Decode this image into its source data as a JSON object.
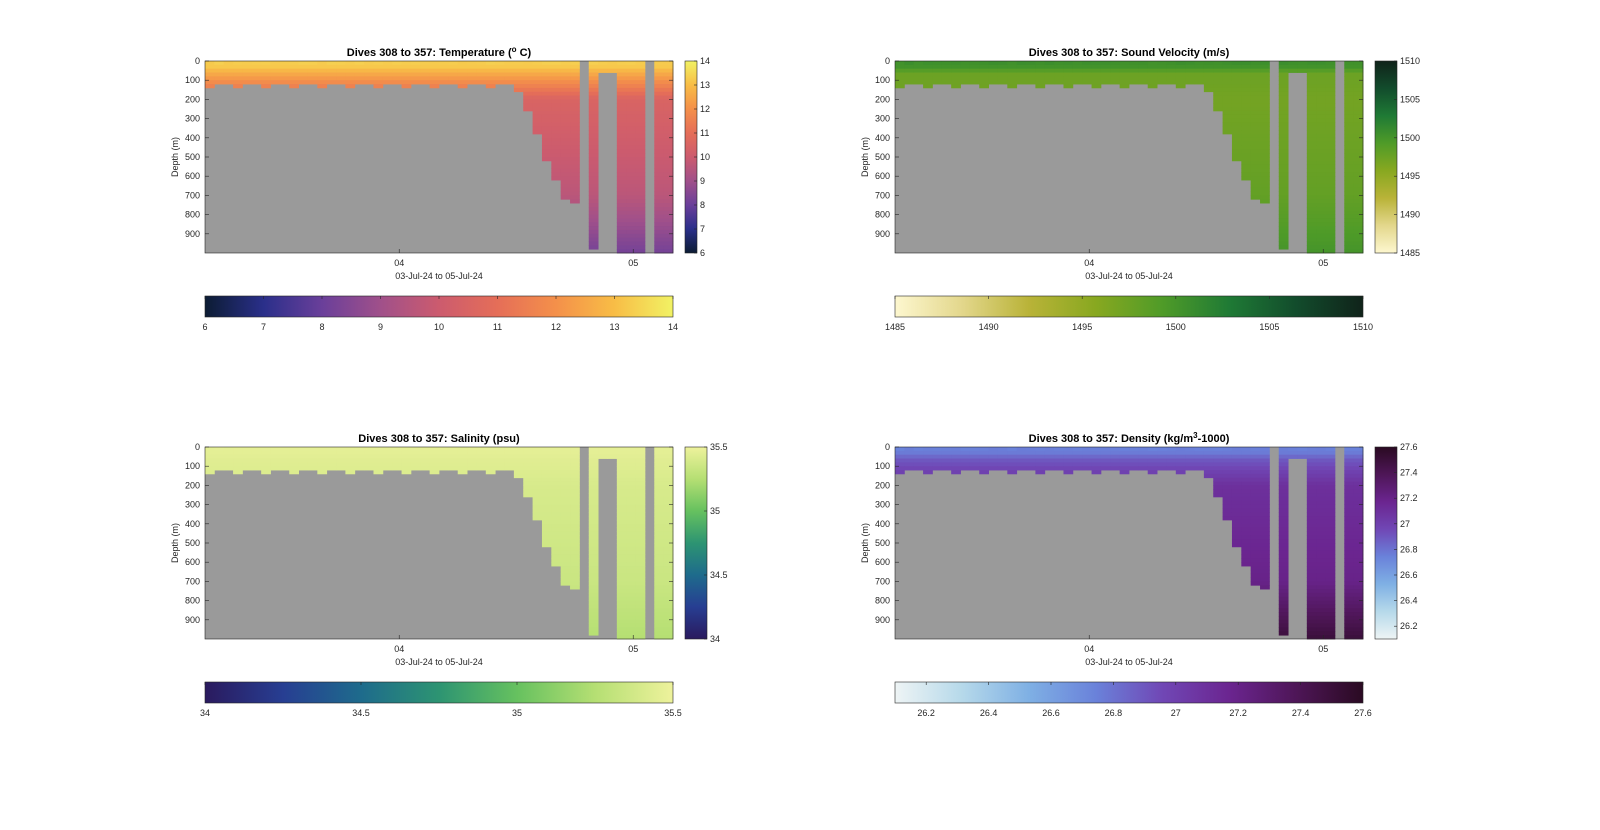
{
  "figure": {
    "xlabel": "03-Jul-24 to 05-Jul-24",
    "ylabel": "Depth (m)",
    "nodata_color": "#9a9a9a",
    "x_ticks": [
      "04",
      "05"
    ],
    "y_ticks": [
      "0",
      "100",
      "200",
      "300",
      "400",
      "500",
      "600",
      "700",
      "800",
      "900"
    ]
  },
  "chart_data": [
    {
      "type": "heatmap",
      "title_prefix": "Dives 308 to 357: Temperature (",
      "title_sup": "o",
      "title_suffix": " C)",
      "variable": "Temperature",
      "x_range": [
        "03-Jul-24",
        "05-Jul-24"
      ],
      "ylim": [
        0,
        1000
      ],
      "y_reversed": true,
      "clim": [
        6,
        14
      ],
      "colorbar_ticks": [
        "6",
        "7",
        "8",
        "9",
        "10",
        "11",
        "12",
        "13",
        "14"
      ],
      "colormap": [
        "#0c1c33",
        "#2a2f8a",
        "#6a3f9a",
        "#a0508a",
        "#cc5b6e",
        "#e56e58",
        "#f4904a",
        "#f8bd46",
        "#f1f264"
      ],
      "profile": {
        "surface": 13.3,
        "mixed": 12.5,
        "thermocline": 10.5,
        "deep": 9.6,
        "bottom": 8.2
      }
    },
    {
      "type": "heatmap",
      "title_prefix": "Dives 308 to 357: Sound Velocity (m/s)",
      "title_sup": "",
      "title_suffix": "",
      "variable": "Sound Velocity",
      "x_range": [
        "03-Jul-24",
        "05-Jul-24"
      ],
      "ylim": [
        0,
        1000
      ],
      "y_reversed": true,
      "clim": [
        1485,
        1510
      ],
      "colorbar_ticks": [
        "1485",
        "1490",
        "1495",
        "1500",
        "1505",
        "1510"
      ],
      "colormap": [
        "#fdf7cf",
        "#e3d78c",
        "#b9b338",
        "#88a820",
        "#4f9b28",
        "#1f7a35",
        "#124c2c",
        "#10231a"
      ],
      "profile": {
        "surface": 1500.5,
        "mixed": 1497.5,
        "thermocline": 1497.0,
        "deep": 1498.0,
        "bottom": 1500.0
      }
    },
    {
      "type": "heatmap",
      "title_prefix": "Dives 308 to 357: Salinity (psu)",
      "title_sup": "",
      "title_suffix": "",
      "variable": "Salinity",
      "x_range": [
        "03-Jul-24",
        "05-Jul-24"
      ],
      "ylim": [
        0,
        1000
      ],
      "y_reversed": true,
      "clim": [
        34,
        35.5
      ],
      "colorbar_ticks": [
        "34",
        "34.5",
        "35",
        "35.5"
      ],
      "colormap": [
        "#2a1a5e",
        "#273e92",
        "#1e6b8c",
        "#2d9472",
        "#66c15f",
        "#b5df73",
        "#eef29c"
      ],
      "profile": {
        "surface": 35.46,
        "mixed": 35.44,
        "thermocline": 35.4,
        "deep": 35.34,
        "bottom": 35.25
      }
    },
    {
      "type": "heatmap",
      "title_prefix": "Dives 308 to 357: Density (kg/m",
      "title_sup": "3",
      "title_suffix": "-1000)",
      "variable": "Density",
      "x_range": [
        "03-Jul-24",
        "05-Jul-24"
      ],
      "ylim": [
        0,
        1000
      ],
      "y_reversed": true,
      "clim": [
        26.1,
        27.6
      ],
      "colorbar_ticks": [
        "26.2",
        "26.4",
        "26.6",
        "26.8",
        "27",
        "27.2",
        "27.4",
        "27.6"
      ],
      "colorbar_tick_values": [
        26.2,
        26.4,
        26.6,
        26.8,
        27.0,
        27.2,
        27.4,
        27.6
      ],
      "colormap": [
        "#eef4f5",
        "#b6d9ea",
        "#7fb0e4",
        "#6a82da",
        "#7047b5",
        "#6b2590",
        "#4e1657",
        "#2a0a22"
      ],
      "profile": {
        "surface": 26.75,
        "mixed": 26.9,
        "thermocline": 27.1,
        "deep": 27.2,
        "bottom": 27.5
      }
    }
  ]
}
